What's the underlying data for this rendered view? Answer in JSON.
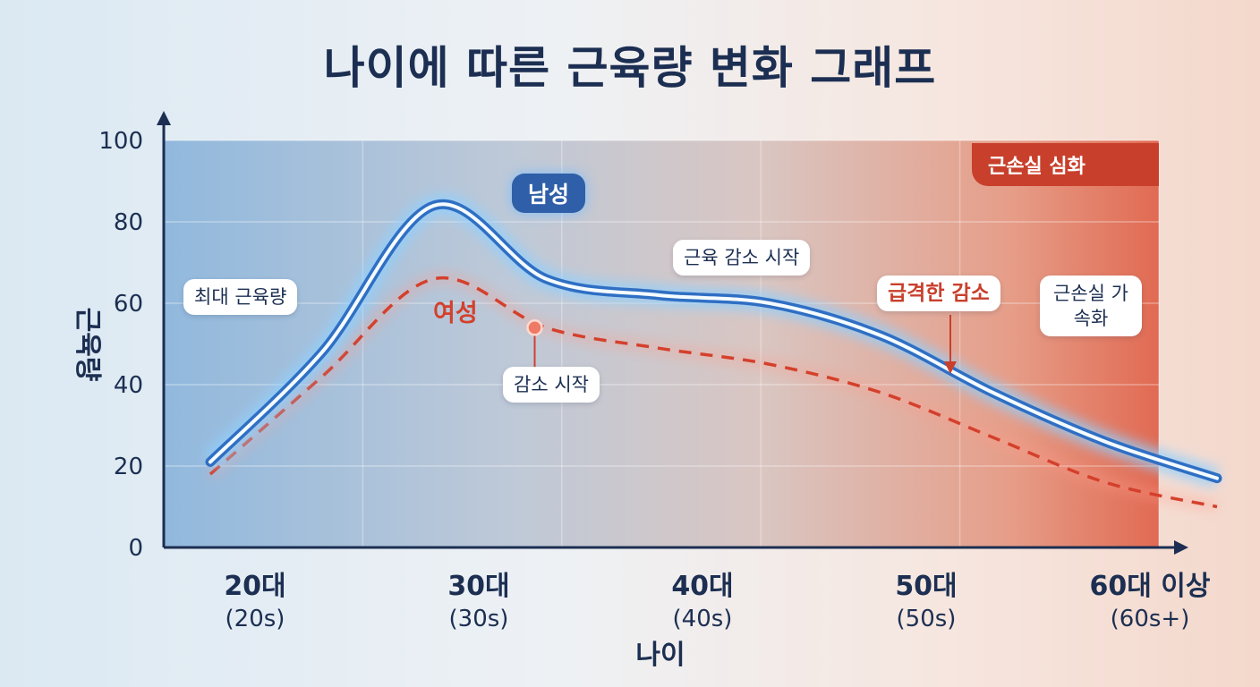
{
  "chart_data": {
    "type": "line",
    "title": "나이에 따른 근육량 변화 그래프",
    "ylabel": "근육량",
    "xlabel": "나이",
    "ylim": [
      0,
      100
    ],
    "yticks": [
      "0",
      "20",
      "40",
      "60",
      "80",
      "100"
    ],
    "categories": [
      {
        "main": "20대",
        "sub": "(20s)"
      },
      {
        "main": "30대",
        "sub": "(30s)"
      },
      {
        "main": "40대",
        "sub": "(40s)"
      },
      {
        "main": "50대",
        "sub": "(50s)"
      },
      {
        "main": "60대 이상",
        "sub": "(60s+)"
      }
    ],
    "x_domain": [
      0,
      4.6
    ],
    "series": [
      {
        "name": "남성",
        "color": "#2f6fc4",
        "points": [
          [
            0,
            21
          ],
          [
            0.5,
            48
          ],
          [
            1.0,
            84
          ],
          [
            1.5,
            66
          ],
          [
            2.0,
            62
          ],
          [
            2.5,
            60
          ],
          [
            3.0,
            52
          ],
          [
            3.5,
            38
          ],
          [
            4.0,
            26
          ],
          [
            4.5,
            17
          ]
        ]
      },
      {
        "name": "여성",
        "color": "#d4402c",
        "points": [
          [
            0,
            18
          ],
          [
            0.5,
            42
          ],
          [
            1.0,
            66
          ],
          [
            1.5,
            54
          ],
          [
            2.0,
            49
          ],
          [
            2.5,
            45
          ],
          [
            3.0,
            38
          ],
          [
            3.5,
            27
          ],
          [
            4.0,
            16
          ],
          [
            4.5,
            10
          ]
        ]
      }
    ],
    "annotations": [
      {
        "text": "최대 근육량"
      },
      {
        "text": "근육 감소 시작"
      },
      {
        "text": "감소 시작"
      },
      {
        "text": "급격한 감소"
      },
      {
        "text": "근손실 가속화"
      }
    ],
    "zone_label": "근손실 심화",
    "grid": true
  }
}
